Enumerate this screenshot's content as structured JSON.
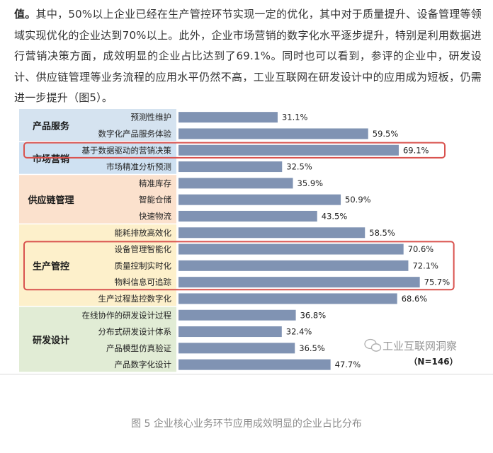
{
  "intro": {
    "lead": "值。",
    "text": "其中，50%以上企业已经在生产管控环节实现一定的优化，其中对于质量提升、设备管理等领域实现优化的企业达到70%以上。此外，企业市场营销的数字化水平逐步提升，特别是利用数据进行营销决策方面，成效明显的企业占比达到了69.1%。同时也可以看到，参评的企业中，研发设计、供应链管理等业务流程的应用水平仍然不高，工业互联网在研发设计中的应用成为短板，仍需进一步提升（图5）。"
  },
  "chart_data": {
    "type": "bar",
    "orientation": "horizontal",
    "xlim": [
      0,
      100
    ],
    "unit": "%",
    "bar_color": "#8093b3",
    "highlight_color": "#d9534f",
    "groups": [
      {
        "name": "产品服务",
        "color": "#d5e3f0",
        "items": [
          {
            "label": "预测性维护",
            "value": 31.1,
            "value_text": "31.1%"
          },
          {
            "label": "数字化产品服务体验",
            "value": 59.5,
            "value_text": "59.5%"
          }
        ]
      },
      {
        "name": "市场营销",
        "color": "#cfe1f2",
        "highlight": true,
        "items": [
          {
            "label": "基于数据驱动的营销决策",
            "value": 69.1,
            "value_text": "69.1%",
            "highlight": true
          },
          {
            "label": "市场精准分析预测",
            "value": 32.5,
            "value_text": "32.5%"
          }
        ]
      },
      {
        "name": "供应链管理",
        "color": "#fbe1cd",
        "items": [
          {
            "label": "精准库存",
            "value": 35.9,
            "value_text": "35.9%"
          },
          {
            "label": "智能仓储",
            "value": 50.9,
            "value_text": "50.9%"
          },
          {
            "label": "快速物流",
            "value": 43.5,
            "value_text": "43.5%"
          }
        ]
      },
      {
        "name": "生产管控",
        "color": "#fdf0cb",
        "highlight": true,
        "items": [
          {
            "label": "能耗排放高效化",
            "value": 58.5,
            "value_text": "58.5%"
          },
          {
            "label": "设备管理智能化",
            "value": 70.6,
            "value_text": "70.6%",
            "highlight": true
          },
          {
            "label": "质量控制实时化",
            "value": 72.1,
            "value_text": "72.1%",
            "highlight": true
          },
          {
            "label": "物料信息可追踪",
            "value": 75.7,
            "value_text": "75.7%",
            "highlight": true
          },
          {
            "label": "生产过程监控数字化",
            "value": 68.6,
            "value_text": "68.6%"
          }
        ]
      },
      {
        "name": "研发设计",
        "color": "#e1ecd5",
        "items": [
          {
            "label": "在线协作的研发设计过程",
            "value": 36.8,
            "value_text": "36.8%"
          },
          {
            "label": "分布式研发设计体系",
            "value": 32.4,
            "value_text": "32.4%"
          },
          {
            "label": "产品模型仿真验证",
            "value": 36.5,
            "value_text": "36.5%"
          },
          {
            "label": "产品数字化设计",
            "value": 47.7,
            "value_text": "47.7%"
          }
        ]
      }
    ],
    "note": "（N=146）",
    "watermark": "工业互联网洞察"
  },
  "caption": "图 5 企业核心业务环节应用成效明显的企业占比分布"
}
